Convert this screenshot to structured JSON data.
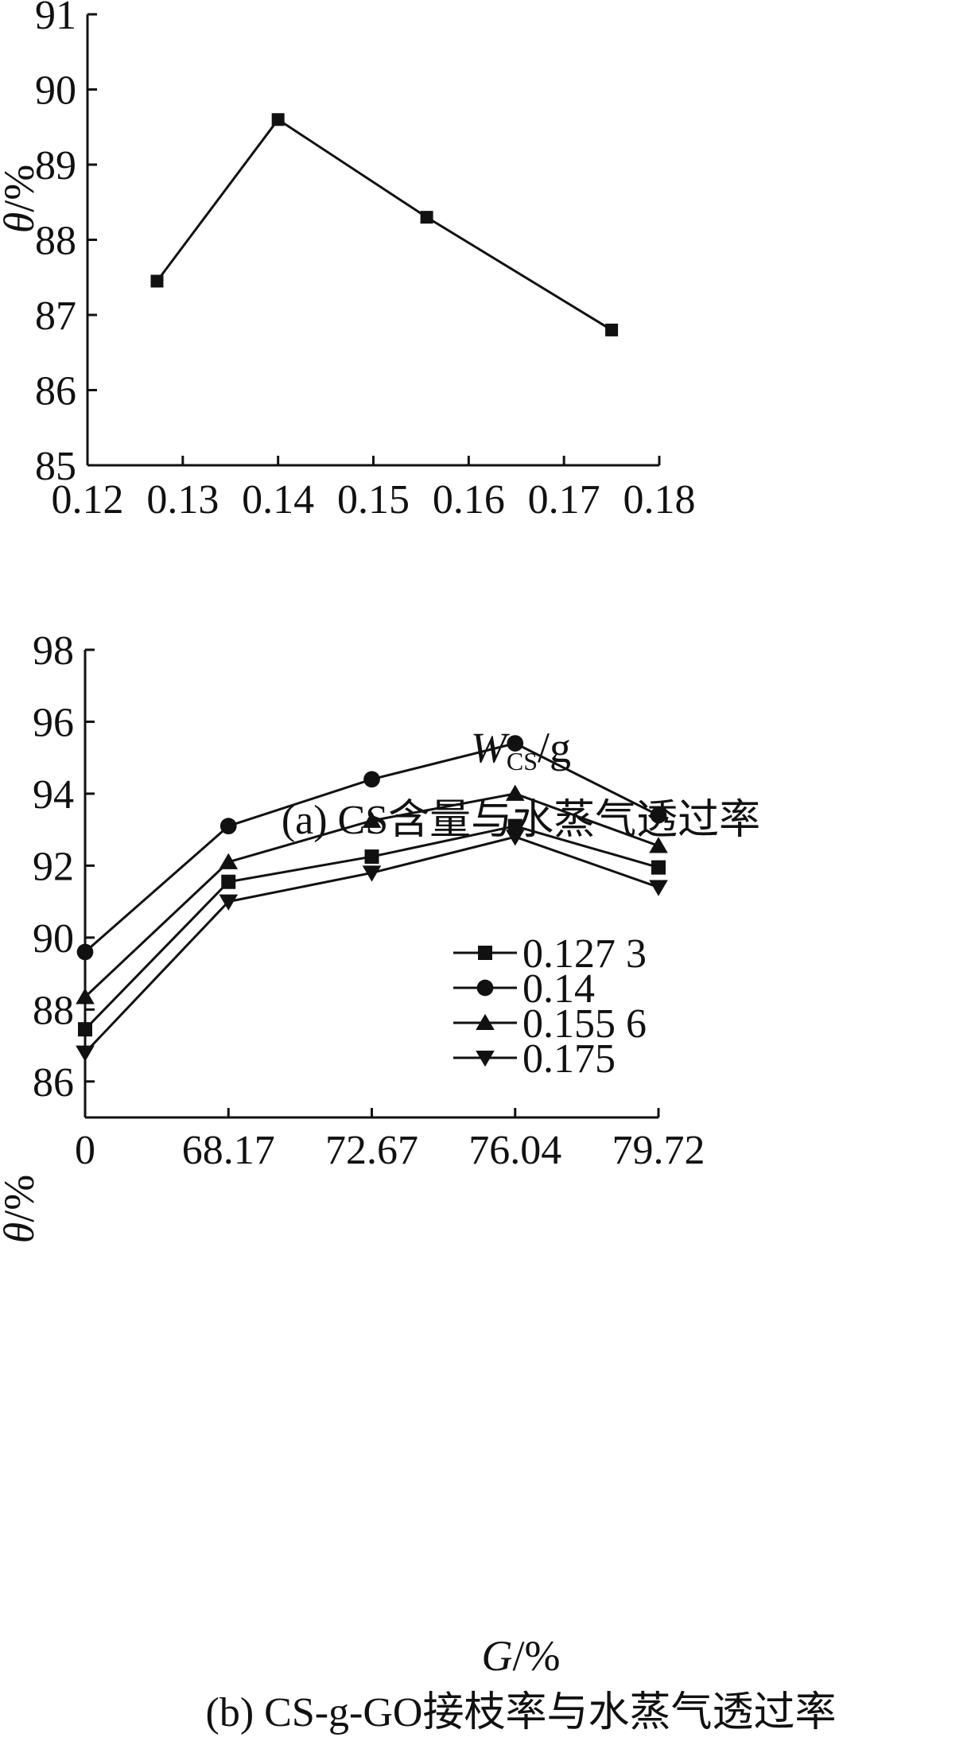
{
  "chart_data": [
    {
      "type": "line",
      "caption": "(a) CS含量与水蒸气透过率",
      "ylabel_var": "θ",
      "ylabel_unit": "/%",
      "xlabel_var": "W",
      "xlabel_sub": "CS",
      "xlabel_unit": "/g",
      "xlim": [
        0.12,
        0.18
      ],
      "ylim": [
        85,
        91
      ],
      "xticks": [
        "0.12",
        "0.13",
        "0.14",
        "0.15",
        "0.16",
        "0.17",
        "0.18"
      ],
      "yticks": [
        "85",
        "86",
        "87",
        "88",
        "89",
        "90",
        "91"
      ],
      "grid": false,
      "series": [
        {
          "marker": "square",
          "x": [
            0.1273,
            0.14,
            0.1556,
            0.175
          ],
          "y": [
            87.45,
            89.6,
            88.3,
            86.8
          ]
        }
      ]
    },
    {
      "type": "line",
      "caption": "(b) CS-g-GO接枝率与水蒸气透过率",
      "ylabel_var": "θ",
      "ylabel_unit": "/%",
      "xlabel_var": "G",
      "xlabel_unit": "/%",
      "categories": [
        "0",
        "68.17",
        "72.67",
        "76.04",
        "79.72"
      ],
      "ylim": [
        85,
        98
      ],
      "yticks": [
        "86",
        "88",
        "90",
        "92",
        "94",
        "96",
        "98"
      ],
      "grid": false,
      "legend_position": "lower-right",
      "series": [
        {
          "name": "0.127 3",
          "marker": "square",
          "values": [
            87.45,
            91.55,
            92.25,
            93.1,
            91.95
          ]
        },
        {
          "name": "0.14",
          "marker": "circle",
          "values": [
            89.6,
            93.1,
            94.4,
            95.4,
            93.4
          ]
        },
        {
          "name": "0.155 6",
          "marker": "triangle-up",
          "values": [
            88.35,
            92.1,
            93.25,
            94.0,
            92.55
          ]
        },
        {
          "name": "0.175",
          "marker": "triangle-down",
          "values": [
            86.8,
            91.0,
            91.8,
            92.8,
            91.4
          ]
        }
      ]
    }
  ]
}
